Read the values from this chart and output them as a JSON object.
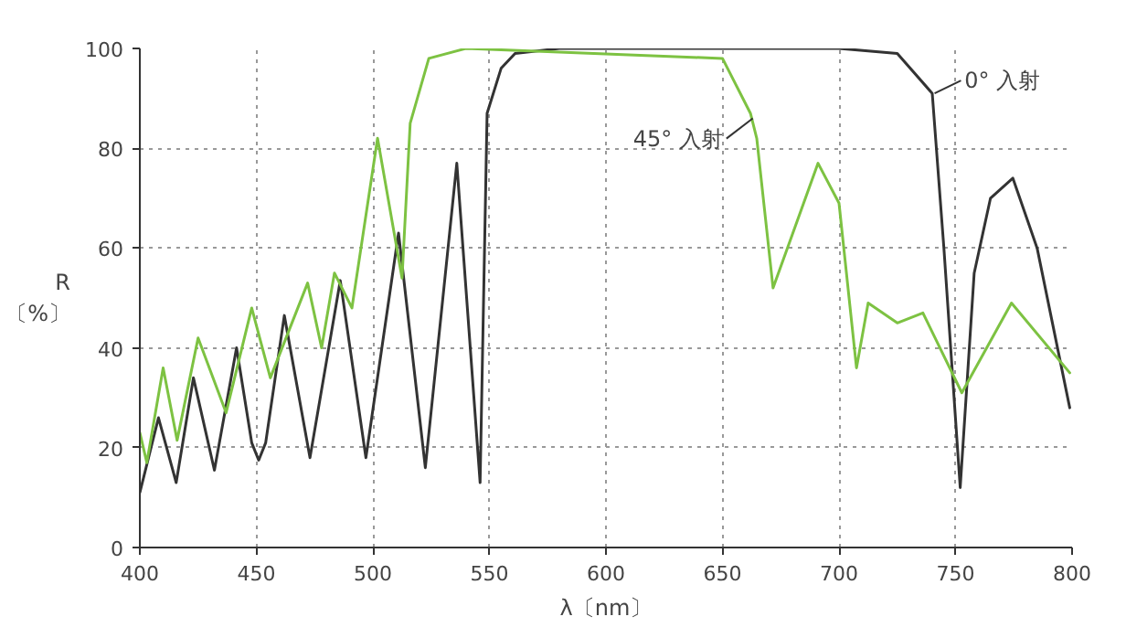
{
  "chart_data": {
    "type": "line",
    "xlabel": "λ〔nm〕",
    "ylabel": "R\n〔%〕",
    "x": [
      400,
      408,
      415.6,
      423,
      432,
      441.5,
      448,
      451,
      454,
      462,
      473,
      486,
      497,
      511,
      522.5,
      536,
      546,
      549,
      555,
      561,
      580,
      650,
      700,
      725,
      740,
      745,
      752,
      758,
      765,
      774.6,
      785,
      799
    ],
    "series": [
      {
        "color": "#333333",
        "values": [
          11,
          26,
          13,
          34,
          15.5,
          40,
          21,
          17.5,
          21,
          46.5,
          18,
          53.5,
          18,
          63,
          16,
          77,
          13,
          87,
          96,
          99,
          100,
          100,
          100,
          99,
          91,
          60,
          12,
          55,
          70,
          74,
          60,
          28
        ]
      },
      {
        "color": "#7dc242",
        "x": [
          400,
          403,
          410,
          416,
          425,
          437,
          448,
          456,
          472,
          478,
          483.5,
          491,
          502,
          512.5,
          516,
          524,
          540,
          650,
          662,
          664.7,
          671.7,
          691,
          700,
          707.5,
          712.5,
          725,
          736,
          752.7,
          774,
          799
        ],
        "values": [
          23,
          17,
          36,
          21.5,
          42,
          27,
          48,
          34,
          53,
          40,
          55,
          48,
          82,
          54,
          85,
          98,
          100,
          98,
          87,
          82,
          52,
          77,
          69,
          36,
          49,
          45,
          47,
          31,
          49,
          35
        ]
      }
    ],
    "annotations": [
      {
        "text": "0° 入射",
        "x": 741,
        "y": 91
      },
      {
        "text": "45° 入射",
        "x": 663,
        "y": 86
      }
    ],
    "xlim": [
      400,
      800
    ],
    "ylim": [
      0,
      100
    ],
    "xticks": [
      400,
      450,
      500,
      550,
      600,
      650,
      700,
      750,
      800
    ],
    "yticks": [
      0,
      20,
      40,
      60,
      80,
      100
    ],
    "grid": true,
    "marker": "none",
    "line_style": "solid"
  }
}
